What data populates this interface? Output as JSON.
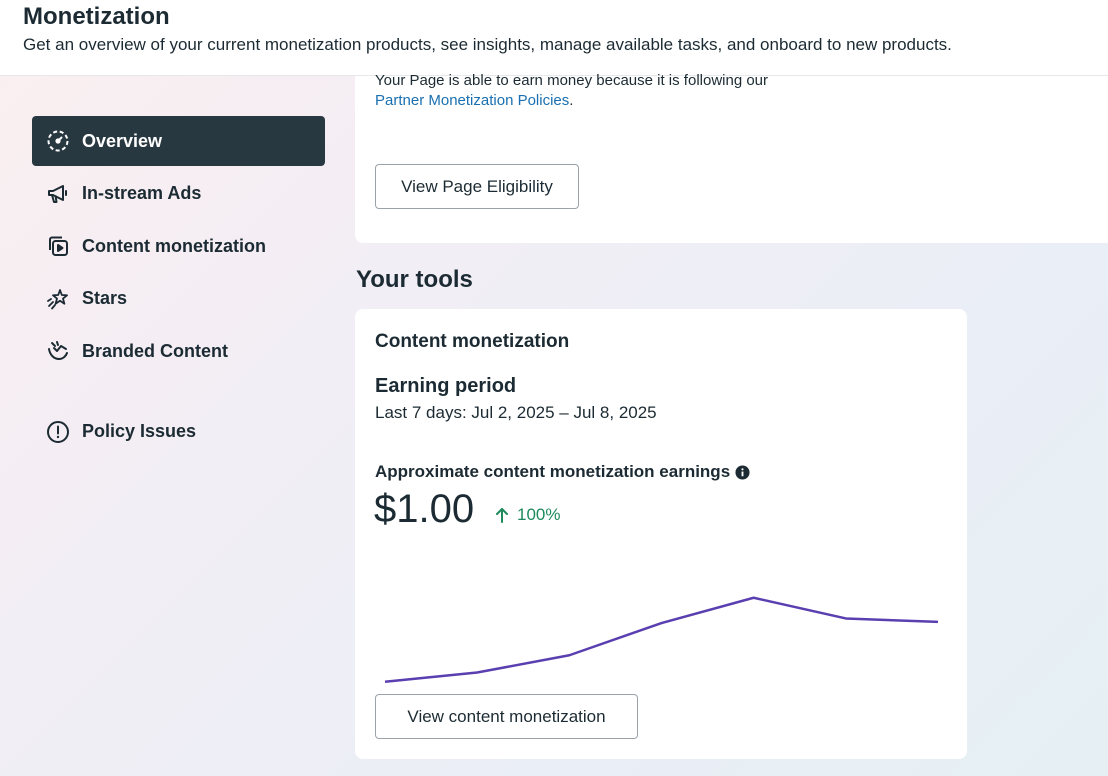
{
  "header": {
    "title": "Monetization",
    "subtitle": "Get an overview of your current monetization products, see insights, manage available tasks, and onboard to new products."
  },
  "sidebar": {
    "items": [
      {
        "label": "Overview",
        "icon": "speedometer-icon",
        "active": true
      },
      {
        "label": "In-stream Ads",
        "icon": "megaphone-icon",
        "active": false
      },
      {
        "label": "Content monetization",
        "icon": "video-stack-icon",
        "active": false
      },
      {
        "label": "Stars",
        "icon": "sparkle-star-icon",
        "active": false
      },
      {
        "label": "Branded Content",
        "icon": "handshake-icon",
        "active": false
      }
    ],
    "secondary": [
      {
        "label": "Policy Issues",
        "icon": "alert-circle-icon"
      }
    ]
  },
  "eligibility_card": {
    "text": "Your Page is able to earn money because it is following our",
    "link": "Partner Monetization Policies",
    "link_suffix": ".",
    "button": "View Page Eligibility"
  },
  "tools": {
    "title": "Your tools",
    "card": {
      "title": "Content monetization",
      "period_title": "Earning period",
      "period_value": "Last 7 days: Jul 2, 2025 – Jul 8, 2025",
      "earnings_label": "Approximate content monetization earnings",
      "amount": "$1.00",
      "change": "100%",
      "change_color": "#1e8a5c",
      "button": "View content monetization"
    }
  },
  "chart_data": {
    "type": "line",
    "series": [
      {
        "values": [
          0.02,
          0.1,
          0.25,
          0.53,
          0.75,
          0.57,
          0.54
        ]
      }
    ],
    "ylim": [
      0,
      1
    ],
    "color": "#5a3fb0",
    "grid": false
  }
}
